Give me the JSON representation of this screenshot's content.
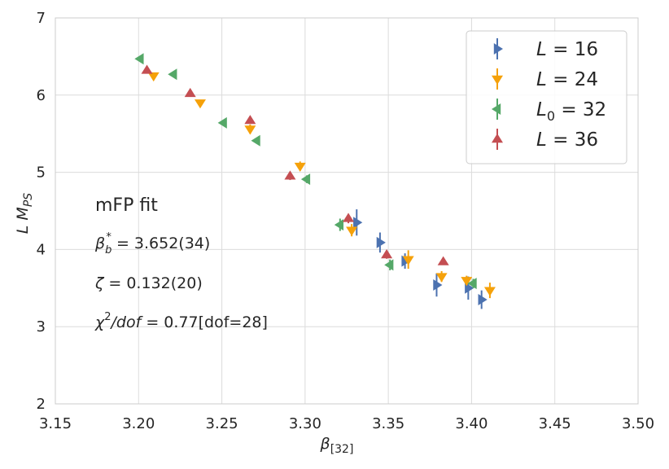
{
  "chart_data": {
    "type": "scatter",
    "title": "",
    "xlabel": "β",
    "xlabel_sub": "[32]",
    "ylabel": "L M",
    "ylabel_sub": "PS",
    "xlim": [
      3.15,
      3.5
    ],
    "ylim": [
      2,
      7
    ],
    "xticks": [
      3.15,
      3.2,
      3.25,
      3.3,
      3.35,
      3.4,
      3.45,
      3.5
    ],
    "xtick_labels": [
      "3.15",
      "3.20",
      "3.25",
      "3.30",
      "3.35",
      "3.40",
      "3.45",
      "3.50"
    ],
    "yticks": [
      2,
      3,
      4,
      5,
      6,
      7
    ],
    "ytick_labels": [
      "2",
      "3",
      "4",
      "5",
      "6",
      "7"
    ],
    "grid": true,
    "legend_position": "top-right",
    "series": [
      {
        "name": "L = 16",
        "legend_var": "L",
        "legend_sub": "",
        "legend_value": "16",
        "marker": "triangle-right",
        "color": "#4c72b0",
        "points": [
          {
            "x": 3.331,
            "y": 4.35,
            "err": 0.17
          },
          {
            "x": 3.345,
            "y": 4.09,
            "err": 0.13
          },
          {
            "x": 3.36,
            "y": 3.85,
            "err": 0.1
          },
          {
            "x": 3.379,
            "y": 3.54,
            "err": 0.15
          },
          {
            "x": 3.398,
            "y": 3.5,
            "err": 0.15
          },
          {
            "x": 3.406,
            "y": 3.35,
            "err": 0.12
          }
        ]
      },
      {
        "name": "L = 24",
        "legend_var": "L",
        "legend_sub": "",
        "legend_value": "24",
        "marker": "triangle-down",
        "color": "#f5a10a",
        "points": [
          {
            "x": 3.209,
            "y": 6.25,
            "err": 0.04
          },
          {
            "x": 3.237,
            "y": 5.9,
            "err": 0.04
          },
          {
            "x": 3.267,
            "y": 5.56,
            "err": 0.06
          },
          {
            "x": 3.297,
            "y": 5.08,
            "err": 0.06
          },
          {
            "x": 3.328,
            "y": 4.25,
            "err": 0.08
          },
          {
            "x": 3.362,
            "y": 3.87,
            "err": 0.12
          },
          {
            "x": 3.382,
            "y": 3.65,
            "err": 0.07
          },
          {
            "x": 3.397,
            "y": 3.6,
            "err": 0.06
          },
          {
            "x": 3.411,
            "y": 3.47,
            "err": 0.1
          }
        ]
      },
      {
        "name": "L0 = 32",
        "legend_var": "L",
        "legend_sub": "0",
        "legend_value": "32",
        "marker": "triangle-left",
        "color": "#55a868",
        "points": [
          {
            "x": 3.201,
            "y": 6.47,
            "err": 0.03
          },
          {
            "x": 3.221,
            "y": 6.27,
            "err": 0.03
          },
          {
            "x": 3.251,
            "y": 5.64,
            "err": 0.03
          },
          {
            "x": 3.271,
            "y": 5.41,
            "err": 0.04
          },
          {
            "x": 3.301,
            "y": 4.91,
            "err": 0.05
          },
          {
            "x": 3.321,
            "y": 4.32,
            "err": 0.08
          },
          {
            "x": 3.351,
            "y": 3.8,
            "err": 0.07
          },
          {
            "x": 3.401,
            "y": 3.56,
            "err": 0.06
          }
        ]
      },
      {
        "name": "L = 36",
        "legend_var": "L",
        "legend_sub": "",
        "legend_value": "36",
        "marker": "triangle-up",
        "color": "#c44e52",
        "points": [
          {
            "x": 3.205,
            "y": 6.32,
            "err": 0.03
          },
          {
            "x": 3.231,
            "y": 6.02,
            "err": 0.03
          },
          {
            "x": 3.267,
            "y": 5.67,
            "err": 0.04
          },
          {
            "x": 3.291,
            "y": 4.95,
            "err": 0.05
          },
          {
            "x": 3.326,
            "y": 4.4,
            "err": 0.06
          },
          {
            "x": 3.349,
            "y": 3.93,
            "err": 0.05
          },
          {
            "x": 3.383,
            "y": 3.84,
            "err": 0.04
          }
        ]
      }
    ],
    "annotations": {
      "fit_title": "mFP fit",
      "beta_label": "β",
      "beta_sub": "b",
      "beta_sup": "*",
      "beta_value": " = 3.652(34)",
      "zeta_label": "ζ",
      "zeta_value": " = 0.132(20)",
      "chi_label": "χ",
      "chi_sup": "2",
      "chi_dof": "/dof",
      "chi_value": " = 0.77[dof=28]"
    }
  }
}
